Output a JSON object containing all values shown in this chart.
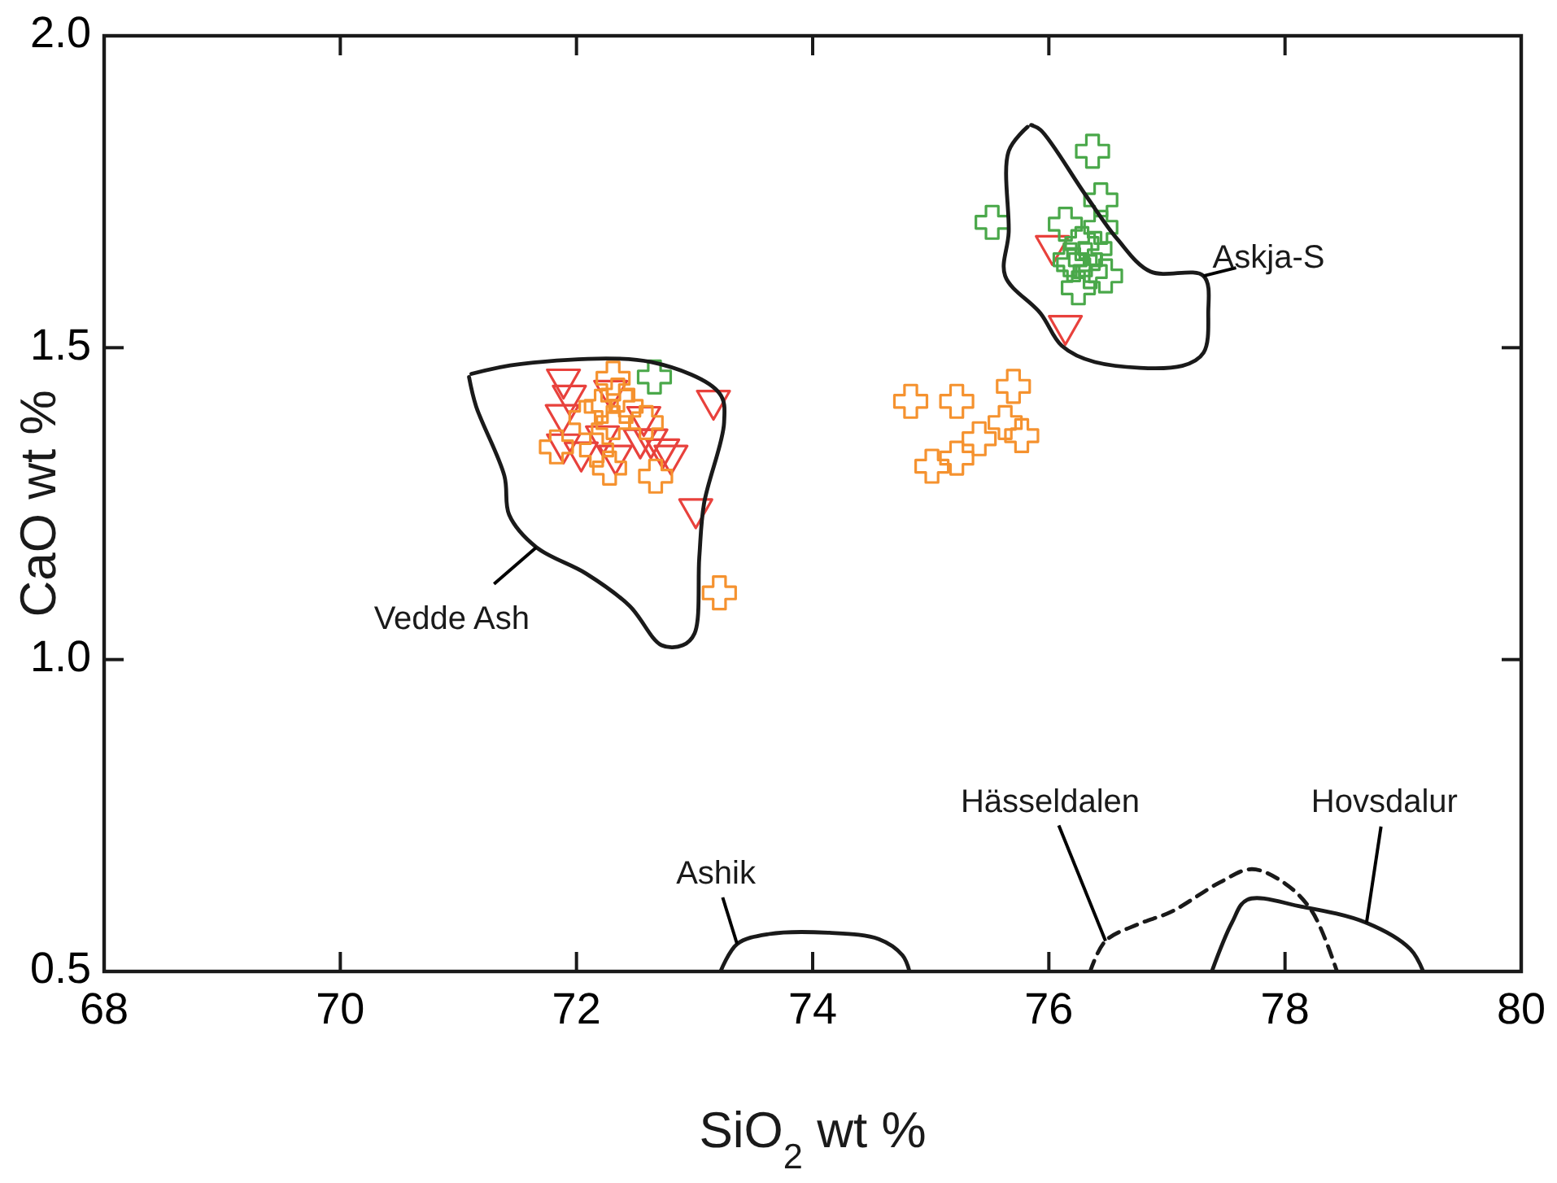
{
  "chart_data": {
    "type": "scatter",
    "xlabel": "SiO$_{2}$ wt %",
    "ylabel": "CaO wt %",
    "xlim": [
      68,
      80
    ],
    "ylim": [
      0.5,
      2.0
    ],
    "xticks": [
      68,
      70,
      72,
      74,
      76,
      78,
      80
    ],
    "yticks": [
      0.5,
      {
        "value": 1,
        "label": "1.0"
      },
      1.5,
      {
        "value": 2,
        "label": "2.0"
      }
    ],
    "series": [
      {
        "marker": "triangle",
        "color": "#e8413c",
        "x": [
          71.89,
          71.94,
          71.88,
          71.89,
          72.04,
          72.22,
          72.29,
          72.33,
          72.57,
          72.54,
          72.63,
          72.73,
          72.8,
          73.16,
          73.01,
          76.03,
          76.14
        ],
        "values": [
          1.445,
          1.419,
          1.388,
          1.341,
          1.328,
          1.354,
          1.427,
          1.323,
          1.385,
          1.349,
          1.349,
          1.333,
          1.323,
          1.411,
          1.237,
          1.659,
          1.531
        ]
      },
      {
        "marker": "cross",
        "color": "#f5922f",
        "x": [
          72.31,
          72.21,
          72.35,
          72.08,
          72.31,
          71.83,
          72.17,
          72.28,
          72.59,
          72.67,
          72.42,
          73.21,
          75.22,
          75.7,
          75.41,
          75.63,
          75.77,
          75.01,
          75.22,
          74.83
        ],
        "values": [
          1.451,
          1.406,
          1.424,
          1.388,
          1.38,
          1.341,
          1.336,
          1.307,
          1.38,
          1.294,
          1.406,
          1.107,
          1.414,
          1.438,
          1.354,
          1.38,
          1.359,
          1.31,
          1.323,
          1.414
        ]
      },
      {
        "marker": "cross",
        "color": "#4aa84a",
        "x": [
          76.37,
          75.52,
          76.14,
          76.44,
          76.44,
          76.28,
          76.39,
          76.21,
          76.35,
          76.25,
          76.48,
          76.18,
          76.31,
          72.66
        ],
        "values": [
          1.815,
          1.701,
          1.698,
          1.737,
          1.693,
          1.667,
          1.659,
          1.633,
          1.622,
          1.596,
          1.615,
          1.641,
          1.641,
          1.453
        ]
      },
      {
        "type": "line",
        "marker": "none",
        "line_style": "solid",
        "color": "#1a1a1a",
        "x": [
          71.11,
          71.53,
          72.63,
          73.21,
          73.25,
          73.08,
          73.04,
          73.0,
          72.9,
          72.72,
          72.45,
          72.08,
          71.66,
          71.43,
          71.39,
          71.15,
          71.09
        ],
        "values": [
          1.458,
          1.474,
          1.477,
          1.427,
          1.38,
          1.25,
          1.164,
          1.042,
          1.023,
          1.023,
          1.086,
          1.138,
          1.18,
          1.232,
          1.294,
          1.406,
          1.453
        ]
      },
      {
        "type": "line",
        "marker": "none",
        "line_style": "solid",
        "color": "#1a1a1a",
        "x": [
          75.82,
          75.66,
          75.66,
          75.63,
          75.93,
          76.11,
          76.39,
          77.13,
          77.31,
          77.35,
          77.31,
          76.86,
          76.58,
          76.31,
          75.93,
          75.85
        ],
        "values": [
          1.854,
          1.815,
          1.685,
          1.615,
          1.555,
          1.503,
          1.477,
          1.471,
          1.492,
          1.555,
          1.615,
          1.622,
          1.674,
          1.745,
          1.849,
          1.857
        ]
      },
      {
        "type": "line",
        "marker": "none",
        "line_style": "solid",
        "color": "#1a1a1a",
        "x": [
          73.22,
          73.36,
          73.63,
          74.14,
          74.56,
          74.76,
          74.82
        ],
        "values": [
          0.5,
          0.544,
          0.56,
          0.562,
          0.552,
          0.526,
          0.5
        ]
      },
      {
        "type": "line",
        "marker": "none",
        "line_style": "dashed",
        "color": "#1a1a1a",
        "x": [
          76.35,
          76.48,
          76.76,
          77.04,
          77.45,
          77.72,
          78.0,
          78.23,
          78.44
        ],
        "values": [
          0.5,
          0.549,
          0.576,
          0.596,
          0.643,
          0.664,
          0.641,
          0.596,
          0.5
        ]
      },
      {
        "type": "line",
        "marker": "none",
        "line_style": "solid",
        "color": "#1a1a1a",
        "x": [
          77.38,
          77.55,
          77.68,
          78.14,
          78.69,
          79.06,
          79.17
        ],
        "values": [
          0.5,
          0.578,
          0.615,
          0.604,
          0.578,
          0.536,
          0.5
        ]
      }
    ],
    "annotations": [
      {
        "text": "Vedde Ash",
        "x": 71.66,
        "y": 1.18
      },
      {
        "text": "Askja-S",
        "x": 77.31,
        "y": 1.615
      },
      {
        "text": "Ashik",
        "x": 73.36,
        "y": 0.544
      },
      {
        "text": "Hässeldalen",
        "x": 76.48,
        "y": 0.549
      },
      {
        "text": "Hovsdalur",
        "x": 78.69,
        "y": 0.578
      }
    ]
  }
}
